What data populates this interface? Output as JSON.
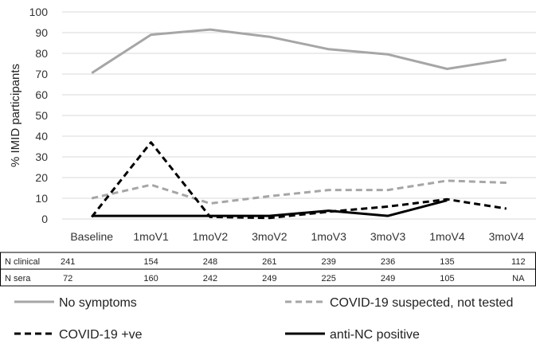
{
  "chart_data": {
    "type": "line",
    "ylabel": "% IMID participants",
    "ylim": [
      0,
      100
    ],
    "yticks": [
      0,
      10,
      20,
      30,
      40,
      50,
      60,
      70,
      80,
      90,
      100
    ],
    "categories": [
      "Baseline",
      "1moV1",
      "1moV2",
      "3moV2",
      "1moV3",
      "3moV3",
      "1moV4",
      "3moV4"
    ],
    "grid": true,
    "legend_position": "bottom",
    "series": [
      {
        "name": "No symptoms",
        "color": "#a6a6a6",
        "dash": "solid",
        "values": [
          70.5,
          89,
          91.5,
          88,
          82,
          79.5,
          72.5,
          77
        ]
      },
      {
        "name": "COVID-19 suspected, not tested",
        "color": "#a6a6a6",
        "dash": "dashed",
        "values": [
          10,
          16.5,
          7.5,
          11,
          14,
          14,
          18.5,
          17.5
        ]
      },
      {
        "name": "COVID-19 +ve",
        "color": "#000000",
        "dash": "dashed",
        "values": [
          1,
          37,
          1,
          0.5,
          3.5,
          6,
          9.5,
          5
        ]
      },
      {
        "name": "anti-NC positive",
        "color": "#000000",
        "dash": "solid",
        "values": [
          1.5,
          1.5,
          1.5,
          1.5,
          4,
          1.5,
          9,
          null
        ]
      }
    ],
    "table": {
      "rows": [
        {
          "label": "N clinical",
          "values": [
            "241",
            "154",
            "248",
            "261",
            "239",
            "236",
            "135",
            "112"
          ]
        },
        {
          "label": "N sera",
          "values": [
            "72",
            "160",
            "242",
            "249",
            "225",
            "249",
            "105",
            "NA"
          ]
        }
      ]
    }
  }
}
